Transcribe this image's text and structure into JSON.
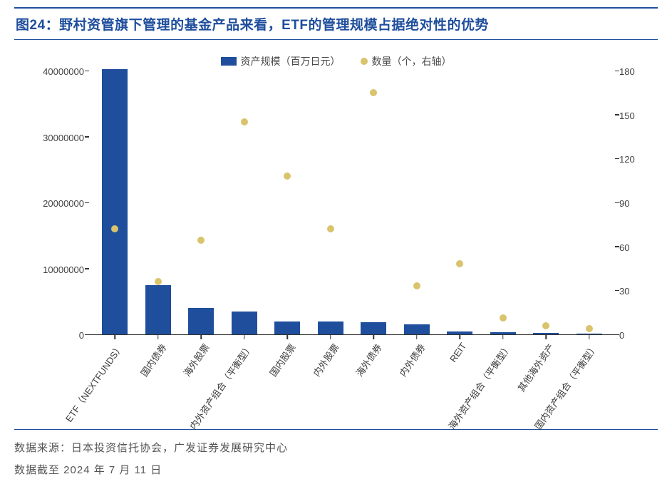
{
  "title": {
    "prefix": "图24：",
    "text": "野村资管旗下管理的基金产品来看，ETF的管理规模占据绝对性的优势"
  },
  "chart": {
    "type": "bar+scatter-dual-axis",
    "legend": {
      "bar_label": "资产规模（百万日元）",
      "dot_label": "数量（个，右轴）"
    },
    "colors": {
      "bar": "#1f4e9c",
      "dot": "#d9c36c",
      "axis": "#333333",
      "text": "#424242",
      "background": "#ffffff"
    },
    "categories": [
      "ETF（NEXTFUNDS）",
      "国内债券",
      "海外股票",
      "内外资产组合（平衡型）",
      "国内股票",
      "内外股票",
      "海外债券",
      "内外债券",
      "REIT",
      "海外资产组合（平衡型）",
      "其他海外资产",
      "国内资产组合（平衡型）"
    ],
    "bar_values": [
      40200000,
      7500000,
      4000000,
      3500000,
      2000000,
      2000000,
      1800000,
      1500000,
      400000,
      300000,
      200000,
      150000
    ],
    "dot_values": [
      72,
      36,
      64,
      145,
      108,
      72,
      165,
      33,
      48,
      11,
      6,
      4
    ],
    "y_left": {
      "min": 0,
      "max": 40000000,
      "ticks": [
        0,
        10000000,
        20000000,
        30000000,
        40000000
      ]
    },
    "y_right": {
      "min": 0,
      "max": 180,
      "ticks": [
        0,
        30,
        60,
        90,
        120,
        150,
        180
      ]
    },
    "font_size_axis": 13,
    "font_size_legend": 14,
    "xlabel_rotation_deg": -55
  },
  "footer": {
    "source_label": "数据来源：",
    "source_text": "日本投资信托协会，广发证券发展研究中心",
    "asof": "数据截至 2024 年 7 月 11 日"
  }
}
